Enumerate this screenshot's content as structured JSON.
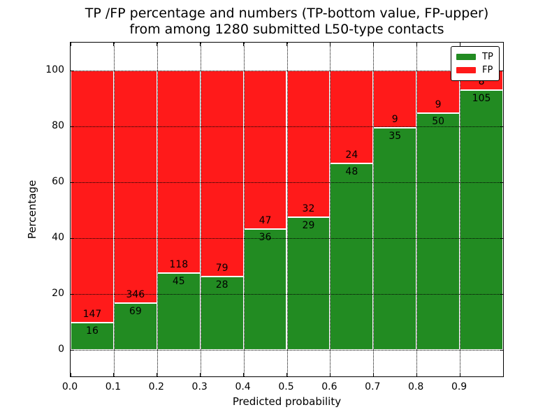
{
  "chart_data": {
    "type": "stacked_bar",
    "title": "TP /FP percentage and numbers (TP-bottom value, FP-upper)",
    "subtitle": "from among 1280 submitted L50-type contacts",
    "xlabel": "Predicted probability",
    "ylabel": "Percentage",
    "stacking": "percentage (each bin normalized to 100%)",
    "categories": [
      "0.0-0.1",
      "0.1-0.2",
      "0.2-0.3",
      "0.3-0.4",
      "0.4-0.5",
      "0.5-0.6",
      "0.6-0.7",
      "0.7-0.8",
      "0.8-0.9",
      "0.9-1.0"
    ],
    "series": [
      {
        "name": "TP",
        "color": "#228B22",
        "values": [
          16,
          69,
          45,
          28,
          36,
          29,
          48,
          35,
          50,
          105
        ]
      },
      {
        "name": "FP",
        "color": "#FF1A1A",
        "values": [
          147,
          346,
          118,
          79,
          47,
          32,
          24,
          9,
          9,
          8
        ]
      }
    ],
    "tp_percent": [
      9.8,
      16.6,
      27.6,
      26.2,
      43.4,
      47.5,
      66.7,
      79.5,
      84.7,
      92.9
    ],
    "yticks": [
      0,
      20,
      40,
      60,
      80,
      100
    ],
    "xticks": [
      "0.0",
      "0.1",
      "0.2",
      "0.3",
      "0.4",
      "0.5",
      "0.6",
      "0.7",
      "0.8",
      "0.9"
    ],
    "ylim": [
      -10,
      110
    ],
    "xlim": [
      0,
      1.0
    ],
    "grid": "dotted black, both axes",
    "legend_position": "upper right"
  }
}
